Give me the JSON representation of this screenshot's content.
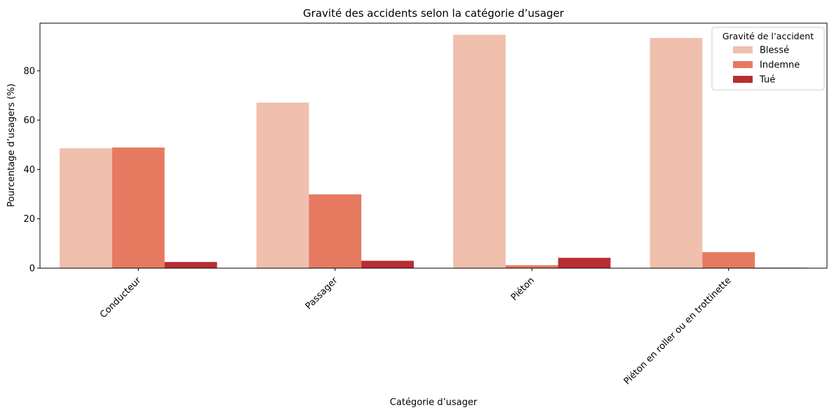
{
  "chart_data": {
    "type": "bar",
    "title": "Gravité des accidents selon la catégorie d’usager",
    "xlabel": "Catégorie d’usager",
    "ylabel": "Pourcentage d’usagers (%)",
    "categories": [
      "Conducteur",
      "Passager",
      "Piéton",
      "Piéton en roller ou en trottinette"
    ],
    "series": [
      {
        "name": "Blessé",
        "color": "#f0bfad",
        "values": [
          48.6,
          67.1,
          94.6,
          93.3
        ]
      },
      {
        "name": "Indemne",
        "color": "#e57a61",
        "values": [
          48.9,
          29.9,
          1.2,
          6.5
        ]
      },
      {
        "name": "Tué",
        "color": "#b82e32",
        "values": [
          2.5,
          3.0,
          4.2,
          0.2
        ]
      }
    ],
    "ylim": [
      0,
      99.3
    ],
    "yticks": [
      0,
      20,
      40,
      60,
      80
    ],
    "legend": {
      "title": "Gravité de l’accident",
      "position": "top-right"
    },
    "grid": false
  }
}
